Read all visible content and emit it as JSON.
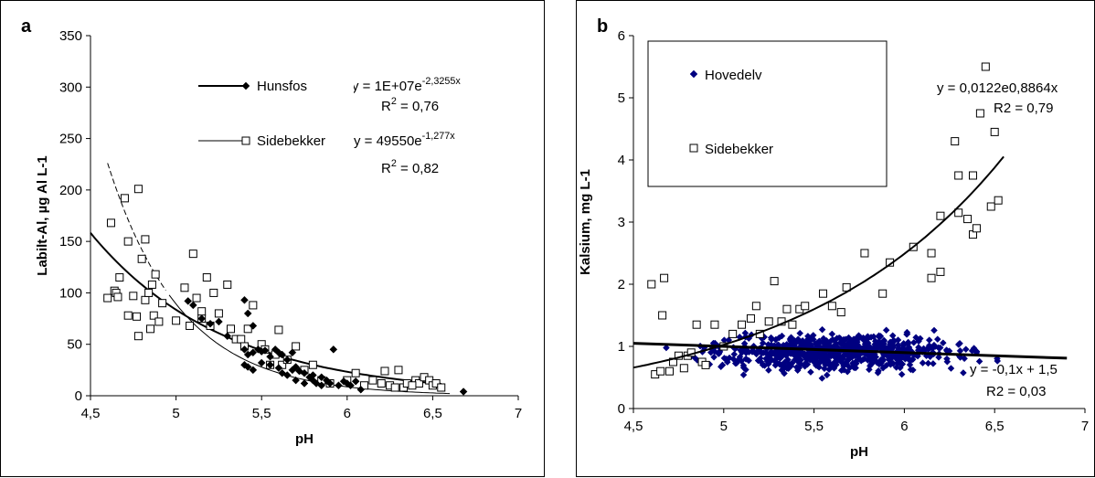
{
  "chart_data": [
    {
      "type": "scatter",
      "panel_letter": "a",
      "xlabel": "pH",
      "ylabel": "Labilt-Al, µg Al L-1",
      "xlim": [
        4.5,
        7
      ],
      "ylim": [
        0,
        350
      ],
      "xticks": [
        "4,5",
        "5",
        "5,5",
        "6",
        "6,5",
        "7"
      ],
      "yticks": [
        "0",
        "50",
        "100",
        "150",
        "200",
        "250",
        "300",
        "350"
      ],
      "grid": false,
      "legend_position": "top-center",
      "series": [
        {
          "name": "Hunsfos",
          "marker": "filled-diamond",
          "color": "#000000",
          "points": [
            [
              5.07,
              92
            ],
            [
              5.1,
              88
            ],
            [
              5.15,
              75
            ],
            [
              5.2,
              70
            ],
            [
              5.25,
              72
            ],
            [
              5.3,
              58
            ],
            [
              5.4,
              93
            ],
            [
              5.42,
              80
            ],
            [
              5.45,
              68
            ],
            [
              5.4,
              45
            ],
            [
              5.42,
              40
            ],
            [
              5.45,
              42
            ],
            [
              5.48,
              45
            ],
            [
              5.5,
              43
            ],
            [
              5.52,
              44
            ],
            [
              5.55,
              38
            ],
            [
              5.58,
              45
            ],
            [
              5.6,
              42
            ],
            [
              5.62,
              40
            ],
            [
              5.65,
              35
            ],
            [
              5.68,
              42
            ],
            [
              5.4,
              30
            ],
            [
              5.42,
              28
            ],
            [
              5.45,
              25
            ],
            [
              5.5,
              32
            ],
            [
              5.55,
              30
            ],
            [
              5.6,
              27
            ],
            [
              5.62,
              22
            ],
            [
              5.65,
              20
            ],
            [
              5.68,
              25
            ],
            [
              5.7,
              28
            ],
            [
              5.72,
              24
            ],
            [
              5.75,
              22
            ],
            [
              5.78,
              18
            ],
            [
              5.8,
              15
            ],
            [
              5.82,
              12
            ],
            [
              5.85,
              18
            ],
            [
              5.88,
              15
            ],
            [
              5.9,
              12
            ],
            [
              5.92,
              45
            ],
            [
              5.95,
              10
            ],
            [
              5.98,
              14
            ],
            [
              6.0,
              12
            ],
            [
              6.02,
              10
            ],
            [
              6.05,
              14
            ],
            [
              6.08,
              6
            ],
            [
              5.7,
              15
            ],
            [
              5.75,
              12
            ],
            [
              5.8,
              20
            ],
            [
              5.85,
              10
            ],
            [
              6.68,
              4
            ]
          ]
        },
        {
          "name": "Sidebekker",
          "marker": "open-square",
          "color": "#000000",
          "points": [
            [
              4.6,
              95
            ],
            [
              4.62,
              168
            ],
            [
              4.64,
              102
            ],
            [
              4.65,
              100
            ],
            [
              4.66,
              96
            ],
            [
              4.67,
              115
            ],
            [
              4.7,
              192
            ],
            [
              4.72,
              78
            ],
            [
              4.72,
              150
            ],
            [
              4.75,
              97
            ],
            [
              4.77,
              77
            ],
            [
              4.78,
              201
            ],
            [
              4.78,
              58
            ],
            [
              4.8,
              133
            ],
            [
              4.82,
              93
            ],
            [
              4.82,
              152
            ],
            [
              4.84,
              100
            ],
            [
              4.85,
              65
            ],
            [
              4.86,
              108
            ],
            [
              4.87,
              78
            ],
            [
              4.88,
              118
            ],
            [
              4.9,
              72
            ],
            [
              4.92,
              90
            ],
            [
              5.0,
              73
            ],
            [
              5.05,
              105
            ],
            [
              5.08,
              68
            ],
            [
              5.1,
              138
            ],
            [
              5.12,
              95
            ],
            [
              5.15,
              75
            ],
            [
              5.15,
              82
            ],
            [
              5.18,
              115
            ],
            [
              5.2,
              68
            ],
            [
              5.22,
              100
            ],
            [
              5.25,
              80
            ],
            [
              5.3,
              108
            ],
            [
              5.32,
              65
            ],
            [
              5.35,
              55
            ],
            [
              5.38,
              55
            ],
            [
              5.4,
              48
            ],
            [
              5.42,
              65
            ],
            [
              5.45,
              88
            ],
            [
              5.5,
              50
            ],
            [
              5.52,
              45
            ],
            [
              5.55,
              30
            ],
            [
              5.58,
              40
            ],
            [
              5.6,
              64
            ],
            [
              5.62,
              30
            ],
            [
              5.65,
              35
            ],
            [
              5.7,
              48
            ],
            [
              5.75,
              25
            ],
            [
              5.8,
              30
            ],
            [
              5.85,
              15
            ],
            [
              5.9,
              12
            ],
            [
              6.0,
              15
            ],
            [
              6.05,
              22
            ],
            [
              6.1,
              10
            ],
            [
              6.15,
              15
            ],
            [
              6.2,
              12
            ],
            [
              6.22,
              24
            ],
            [
              6.25,
              10
            ],
            [
              6.3,
              25
            ],
            [
              6.33,
              8
            ],
            [
              6.35,
              12
            ],
            [
              6.4,
              15
            ],
            [
              6.42,
              12
            ],
            [
              6.45,
              18
            ],
            [
              6.48,
              15
            ],
            [
              6.5,
              10
            ],
            [
              6.52,
              12
            ],
            [
              6.55,
              8
            ],
            [
              6.28,
              8
            ],
            [
              6.38,
              10
            ]
          ]
        }
      ],
      "trendlines": [
        {
          "series": "Hunsfos",
          "style": "solid-thick",
          "formula": "y = 49550*exp(-1.277*x)",
          "a": 49550,
          "b": -1.277,
          "x_range": [
            4.5,
            6.55
          ]
        },
        {
          "series": "Sidebekker",
          "style": "thin-dashed-then-solid",
          "formula": "y = 1E+07*exp(-2.3255*x)",
          "a": 10000000,
          "b": -2.3255,
          "x_range": [
            4.6,
            6.6
          ],
          "dash_until_x": 4.95
        }
      ],
      "annotations": {
        "eq1": "y = 1E+07e",
        "eq1_exp": "-2,3255x",
        "r2_1": "R",
        "r2_1_sup": "2",
        "r2_1_val": " = 0,76",
        "eq2": "y = 49550e",
        "eq2_exp": "-1,277x",
        "r2_2": "R",
        "r2_2_sup": "2",
        "r2_2_val": " = 0,82"
      }
    },
    {
      "type": "scatter",
      "panel_letter": "b",
      "xlabel": "pH",
      "ylabel": "Kalsium, mg L-1",
      "xlim": [
        4.5,
        7
      ],
      "ylim": [
        0,
        6
      ],
      "xticks": [
        "4,5",
        "5",
        "5,5",
        "6",
        "6,5",
        "7"
      ],
      "yticks": [
        "0",
        "1",
        "2",
        "3",
        "4",
        "5",
        "6"
      ],
      "grid": false,
      "legend_position": "top-left",
      "series": [
        {
          "name": "Hovedelv",
          "marker": "filled-diamond",
          "color": "#000080",
          "approx_points": 700,
          "x_range": [
            4.55,
            6.9
          ],
          "y_center": 0.9,
          "y_spread": 0.25
        },
        {
          "name": "Sidebekker",
          "marker": "open-square",
          "color": "#000000",
          "points": [
            [
              4.6,
              2.0
            ],
            [
              4.62,
              0.55
            ],
            [
              4.65,
              0.6
            ],
            [
              4.66,
              1.5
            ],
            [
              4.67,
              2.1
            ],
            [
              4.7,
              0.6
            ],
            [
              4.72,
              0.75
            ],
            [
              4.75,
              0.85
            ],
            [
              4.78,
              0.65
            ],
            [
              4.8,
              0.85
            ],
            [
              4.82,
              0.9
            ],
            [
              4.85,
              1.35
            ],
            [
              4.88,
              0.75
            ],
            [
              4.9,
              0.7
            ],
            [
              4.95,
              1.35
            ],
            [
              5.0,
              1.0
            ],
            [
              5.05,
              1.2
            ],
            [
              5.1,
              1.35
            ],
            [
              5.15,
              1.45
            ],
            [
              5.18,
              1.65
            ],
            [
              5.2,
              1.2
            ],
            [
              5.25,
              1.4
            ],
            [
              5.28,
              2.05
            ],
            [
              5.32,
              1.4
            ],
            [
              5.35,
              1.6
            ],
            [
              5.38,
              1.35
            ],
            [
              5.42,
              1.6
            ],
            [
              5.45,
              1.65
            ],
            [
              5.55,
              1.85
            ],
            [
              5.6,
              1.65
            ],
            [
              5.65,
              1.55
            ],
            [
              5.68,
              1.95
            ],
            [
              5.78,
              2.5
            ],
            [
              5.88,
              1.85
            ],
            [
              5.92,
              2.35
            ],
            [
              6.05,
              2.6
            ],
            [
              6.15,
              2.1
            ],
            [
              6.15,
              2.5
            ],
            [
              6.2,
              2.2
            ],
            [
              6.2,
              3.1
            ],
            [
              6.28,
              4.3
            ],
            [
              6.3,
              3.15
            ],
            [
              6.3,
              3.75
            ],
            [
              6.35,
              3.05
            ],
            [
              6.38,
              2.8
            ],
            [
              6.38,
              3.75
            ],
            [
              6.4,
              2.9
            ],
            [
              6.42,
              4.75
            ],
            [
              6.45,
              5.5
            ],
            [
              6.48,
              3.25
            ],
            [
              6.5,
              4.45
            ],
            [
              6.52,
              3.35
            ]
          ]
        }
      ],
      "trendlines": [
        {
          "series": "Sidebekker",
          "style": "solid",
          "formula": "y = 0.0122*exp(0.8864*x)",
          "a": 0.0122,
          "b": 0.8864,
          "x_range": [
            4.5,
            6.55
          ]
        },
        {
          "series": "Hovedelv",
          "style": "solid-thick",
          "formula": "y = -0.1*x + 1.5",
          "slope": -0.1,
          "intercept": 1.5,
          "x_range": [
            4.5,
            6.9
          ]
        }
      ],
      "annotations": {
        "eq1": "y = 0,0122e0,8864x",
        "r2_1": "R2 = 0,79",
        "eq2": "y = -0,1x + 1,5",
        "r2_2": "R2 = 0,03"
      }
    }
  ]
}
